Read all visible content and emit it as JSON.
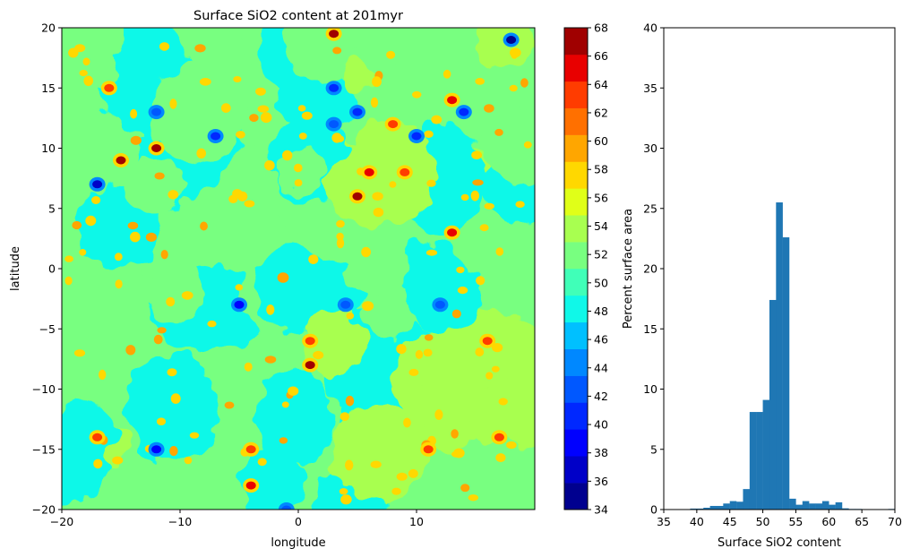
{
  "chart_data": [
    {
      "type": "heatmap",
      "title": "Surface SiO2 content at 201myr",
      "xlabel": "longitude",
      "ylabel": "latitude",
      "xlim": [
        -20,
        20
      ],
      "ylim": [
        -20,
        20
      ],
      "xticks": [
        -20,
        -10,
        0,
        10
      ],
      "yticks": [
        -20,
        -15,
        -10,
        -5,
        0,
        5,
        10,
        15,
        20
      ],
      "dominant_values": [
        49,
        51,
        53
      ],
      "spots": [
        {
          "lon": -17.0,
          "lat": 7.0,
          "v": 37
        },
        {
          "lon": -12.0,
          "lat": 10.0,
          "v": 67
        },
        {
          "lon": -16.0,
          "lat": 15.0,
          "v": 63
        },
        {
          "lon": 3.0,
          "lat": 19.5,
          "v": 67
        },
        {
          "lon": 18.0,
          "lat": 19.0,
          "v": 35
        },
        {
          "lon": 5.0,
          "lat": 6.0,
          "v": 67
        },
        {
          "lon": 13.0,
          "lat": 3.0,
          "v": 65
        },
        {
          "lon": 1.0,
          "lat": -8.0,
          "v": 67
        },
        {
          "lon": -12.0,
          "lat": -15.0,
          "v": 39
        },
        {
          "lon": -5.0,
          "lat": -3.0,
          "v": 39
        },
        {
          "lon": -4.0,
          "lat": -18.0,
          "v": 65
        },
        {
          "lon": -4.0,
          "lat": -15.0,
          "v": 63
        },
        {
          "lon": 3.0,
          "lat": 15.0,
          "v": 41
        },
        {
          "lon": 5.0,
          "lat": 13.0,
          "v": 41
        },
        {
          "lon": 14.0,
          "lat": 13.0,
          "v": 41
        },
        {
          "lon": -7.0,
          "lat": 11.0,
          "v": 41
        },
        {
          "lon": 10.0,
          "lat": 11.0,
          "v": 41
        },
        {
          "lon": -17.0,
          "lat": -14.0,
          "v": 63
        },
        {
          "lon": 8.0,
          "lat": 12.0,
          "v": 63
        },
        {
          "lon": 13.0,
          "lat": 14.0,
          "v": 65
        },
        {
          "lon": 6.0,
          "lat": 8.0,
          "v": 65
        },
        {
          "lon": 1.0,
          "lat": -6.0,
          "v": 63
        },
        {
          "lon": 11.0,
          "lat": -15.0,
          "v": 63
        },
        {
          "lon": 17.0,
          "lat": -14.0,
          "v": 63
        },
        {
          "lon": 4.0,
          "lat": -3.0,
          "v": 43
        },
        {
          "lon": -12.0,
          "lat": 13.0,
          "v": 43
        },
        {
          "lon": 3.0,
          "lat": 12.0,
          "v": 43
        },
        {
          "lon": -1.0,
          "lat": -20.0,
          "v": 43
        },
        {
          "lon": -15.0,
          "lat": 9.0,
          "v": 67
        },
        {
          "lon": 12.0,
          "lat": -3.0,
          "v": 43
        },
        {
          "lon": 9.0,
          "lat": 8.0,
          "v": 63
        },
        {
          "lon": 16.0,
          "lat": -6.0,
          "v": 63
        }
      ],
      "colorbar": {
        "ticks": [
          34,
          36,
          38,
          40,
          42,
          44,
          46,
          48,
          50,
          52,
          54,
          56,
          58,
          60,
          62,
          64,
          66,
          68
        ],
        "colors": [
          "#00008f",
          "#0000c8",
          "#0000ff",
          "#0028ff",
          "#0058ff",
          "#0088ff",
          "#00c0ff",
          "#10f8e8",
          "#40ffb8",
          "#78ff80",
          "#a8ff50",
          "#e0ff18",
          "#ffd800",
          "#ffa600",
          "#ff7000",
          "#ff3c00",
          "#e80000",
          "#a00000"
        ]
      }
    },
    {
      "type": "bar",
      "xlabel": "Surface SiO2 content",
      "ylabel": "Percent surface area",
      "xlim": [
        35,
        70
      ],
      "ylim": [
        0,
        40
      ],
      "xticks": [
        35,
        40,
        45,
        50,
        55,
        60,
        65,
        70
      ],
      "yticks": [
        0,
        5,
        10,
        15,
        20,
        25,
        30,
        35,
        40
      ],
      "bin_width": 1.0,
      "bin_starts": [
        35,
        36,
        37,
        38,
        39,
        40,
        41,
        42,
        43,
        44,
        45,
        46,
        47,
        48,
        49,
        50,
        51,
        52,
        53,
        54,
        55,
        56,
        57,
        58,
        59,
        60,
        61,
        62,
        63,
        64,
        65,
        66,
        67,
        68,
        69
      ],
      "values": [
        0,
        0,
        0.03,
        0.03,
        0.08,
        0.08,
        0.15,
        0.3,
        0.3,
        0.5,
        0.7,
        0.65,
        1.7,
        8.1,
        8.1,
        9.1,
        17.4,
        25.5,
        22.6,
        0.9,
        0.4,
        0.7,
        0.5,
        0.5,
        0.7,
        0.4,
        0.6,
        0.1,
        0.05,
        0.05,
        0.03,
        0.03,
        0.03,
        0.03,
        0.05
      ],
      "color": "#1f77b4"
    }
  ]
}
